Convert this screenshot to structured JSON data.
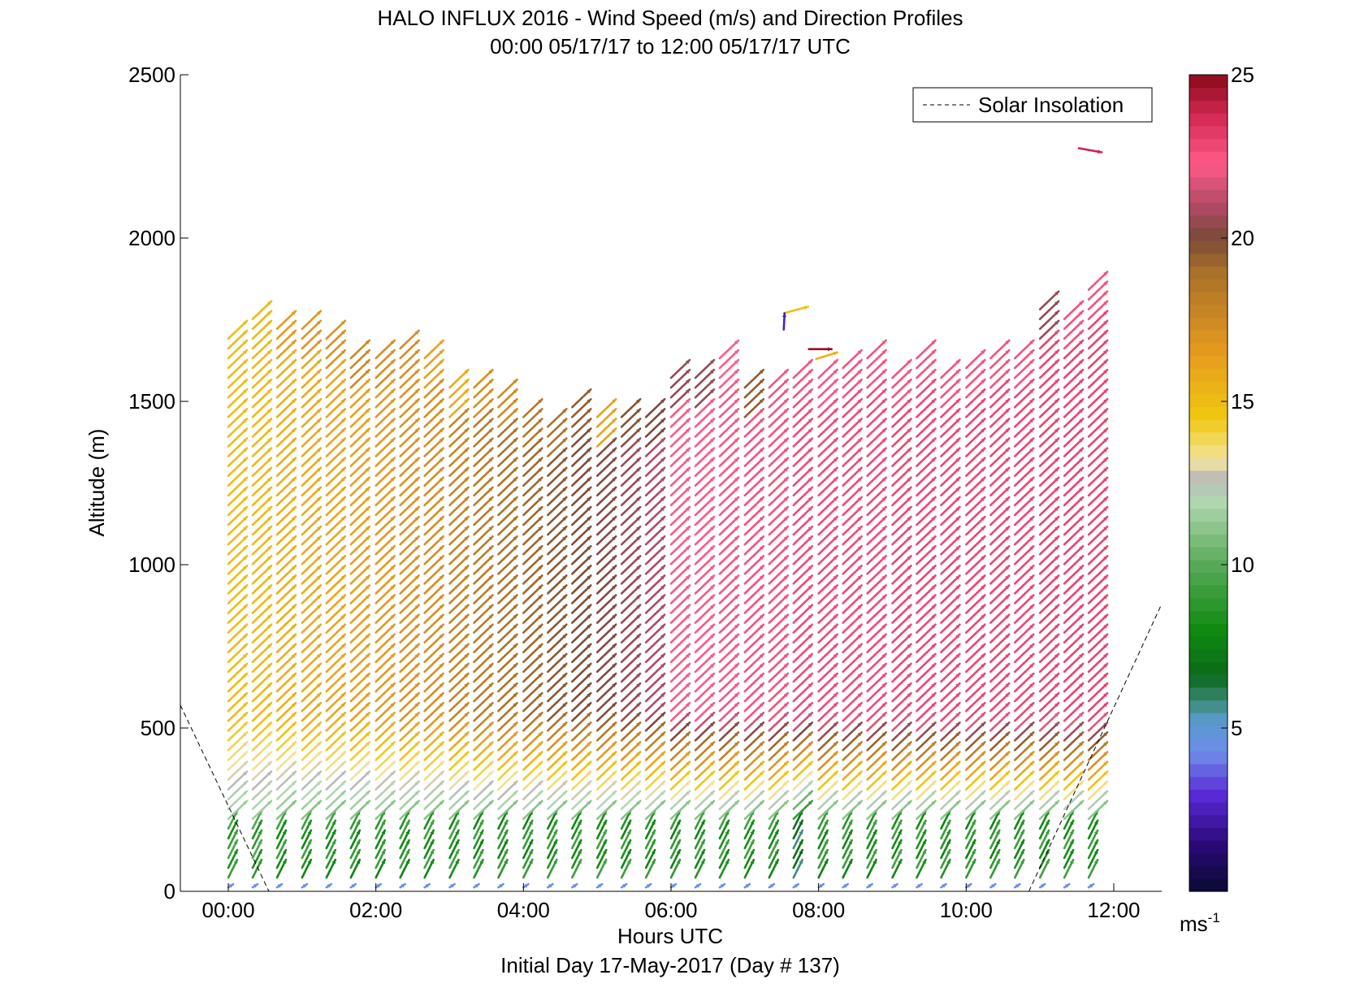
{
  "chart_data": {
    "type": "wind-profile",
    "title": "HALO INFLUX 2016 - Wind Speed (m/s) and Direction Profiles",
    "subtitle": "00:00 05/17/17 to 12:00 05/17/17  UTC",
    "xlabel": "Hours UTC",
    "footer": "Initial Day 17-May-2017 (Day # 137)",
    "ylabel": "Altitude (m)",
    "xlim": [
      -0.65,
      12.65
    ],
    "ylim": [
      0,
      2500
    ],
    "x_ticks": [
      {
        "value": 0,
        "label": "00:00"
      },
      {
        "value": 2,
        "label": "02:00"
      },
      {
        "value": 4,
        "label": "04:00"
      },
      {
        "value": 6,
        "label": "06:00"
      },
      {
        "value": 8,
        "label": "08:00"
      },
      {
        "value": 10,
        "label": "10:00"
      },
      {
        "value": 12,
        "label": "12:00"
      }
    ],
    "y_ticks": [
      {
        "value": 0,
        "label": "0"
      },
      {
        "value": 500,
        "label": "500"
      },
      {
        "value": 1000,
        "label": "1000"
      },
      {
        "value": 1500,
        "label": "1500"
      },
      {
        "value": 2000,
        "label": "2000"
      },
      {
        "value": 2500,
        "label": "2500"
      }
    ],
    "colorbar": {
      "range": [
        0,
        25
      ],
      "ticks": [
        {
          "value": 5,
          "label": "5"
        },
        {
          "value": 10,
          "label": "10"
        },
        {
          "value": 15,
          "label": "15"
        },
        {
          "value": 20,
          "label": "20"
        },
        {
          "value": 25,
          "label": "25"
        }
      ],
      "unit_base": "ms",
      "unit_exp": "-1",
      "stops": [
        {
          "v": 0,
          "c": "#0a0a33"
        },
        {
          "v": 1.5,
          "c": "#2c0a7a"
        },
        {
          "v": 3,
          "c": "#5a2ad8"
        },
        {
          "v": 4.2,
          "c": "#6e8ae8"
        },
        {
          "v": 5.2,
          "c": "#5a9ad0"
        },
        {
          "v": 5.8,
          "c": "#3e8a7a"
        },
        {
          "v": 6.6,
          "c": "#0a6a1a"
        },
        {
          "v": 8,
          "c": "#108a10"
        },
        {
          "v": 10,
          "c": "#58aa58"
        },
        {
          "v": 12,
          "c": "#b4d8b4"
        },
        {
          "v": 12.6,
          "c": "#b8b8b8"
        },
        {
          "v": 13.2,
          "c": "#f2e4a0"
        },
        {
          "v": 14.5,
          "c": "#f0c810"
        },
        {
          "v": 16.5,
          "c": "#e69a1e"
        },
        {
          "v": 19,
          "c": "#a8702a"
        },
        {
          "v": 20,
          "c": "#7a4a3a"
        },
        {
          "v": 21,
          "c": "#b04a66"
        },
        {
          "v": 22.3,
          "c": "#ff5a88"
        },
        {
          "v": 23.7,
          "c": "#d42a55"
        },
        {
          "v": 25,
          "c": "#8a0a1a"
        }
      ]
    },
    "legend": {
      "entries": [
        "Solar Insolation"
      ],
      "position": "top-right"
    },
    "solar_insolation": {
      "segments": [
        [
          [
            -0.65,
            570
          ],
          [
            0.55,
            0
          ]
        ],
        [
          [
            10.85,
            0
          ],
          [
            12.65,
            880
          ]
        ]
      ]
    },
    "profiles": [
      {
        "t": 0.0,
        "top": 1710,
        "speed_low": 9,
        "speed_mid": 15.0,
        "speed_high": 15.0
      },
      {
        "t": 0.33,
        "top": 1760,
        "speed_low": 9,
        "speed_mid": 15.1,
        "speed_high": 15.2
      },
      {
        "t": 0.66,
        "top": 1725,
        "speed_low": 8.5,
        "speed_mid": 15.6,
        "speed_high": 16.5
      },
      {
        "t": 1.0,
        "top": 1725,
        "speed_low": 8.5,
        "speed_mid": 15.8,
        "speed_high": 16.8
      },
      {
        "t": 1.33,
        "top": 1720,
        "speed_low": 8.5,
        "speed_mid": 16.0,
        "speed_high": 17.0
      },
      {
        "t": 1.66,
        "top": 1640,
        "speed_low": 8.5,
        "speed_mid": 16.3,
        "speed_high": 17.6
      },
      {
        "t": 2.0,
        "top": 1635,
        "speed_low": 8.5,
        "speed_mid": 16.6,
        "speed_high": 17.2
      },
      {
        "t": 2.33,
        "top": 1680,
        "speed_low": 8.5,
        "speed_mid": 17.0,
        "speed_high": 17.2
      },
      {
        "t": 2.66,
        "top": 1640,
        "speed_low": 8.5,
        "speed_mid": 17.2,
        "speed_high": 16.2
      },
      {
        "t": 3.0,
        "top": 1550,
        "speed_low": 8.5,
        "speed_mid": 17.8,
        "speed_high": 15.8
      },
      {
        "t": 3.33,
        "top": 1550,
        "speed_low": 8.5,
        "speed_mid": 18.3,
        "speed_high": 17.2
      },
      {
        "t": 3.66,
        "top": 1520,
        "speed_low": 8.5,
        "speed_mid": 18.8,
        "speed_high": 17.5
      },
      {
        "t": 4.0,
        "top": 1480,
        "speed_low": 8.5,
        "speed_mid": 19.2,
        "speed_high": 18.5
      },
      {
        "t": 4.33,
        "top": 1430,
        "speed_low": 8.5,
        "speed_mid": 19.6,
        "speed_high": 18.8
      },
      {
        "t": 4.66,
        "top": 1510,
        "speed_low": 8.5,
        "speed_mid": 19.9,
        "speed_high": 19.5
      },
      {
        "t": 5.0,
        "top": 1470,
        "speed_low": 8.5,
        "speed_mid": 20.2,
        "speed_high": 16.2
      },
      {
        "t": 5.33,
        "top": 1470,
        "speed_low": 8.5,
        "speed_mid": 20.6,
        "speed_high": 19.8
      },
      {
        "t": 5.66,
        "top": 1480,
        "speed_low": 8.5,
        "speed_mid": 21.0,
        "speed_high": 20.0
      },
      {
        "t": 6.0,
        "top": 1595,
        "speed_low": 8.5,
        "speed_mid": 22.2,
        "speed_high": 20.5
      },
      {
        "t": 6.33,
        "top": 1600,
        "speed_low": 8.5,
        "speed_mid": 22.4,
        "speed_high": 20.5
      },
      {
        "t": 6.66,
        "top": 1640,
        "speed_low": 8.5,
        "speed_mid": 22.5,
        "speed_high": 22.3
      },
      {
        "t": 7.0,
        "top": 1560,
        "speed_low": 8.5,
        "speed_mid": 22.6,
        "speed_high": 19.5
      },
      {
        "t": 7.33,
        "top": 1560,
        "speed_low": 8.5,
        "speed_mid": 22.6,
        "speed_high": 22.0
      },
      {
        "t": 7.66,
        "top": 1575,
        "speed_low": 6.5,
        "speed_mid": 22.8,
        "speed_high": 22.6
      },
      {
        "t": 8.0,
        "top": 1580,
        "speed_low": 8.5,
        "speed_mid": 22.8,
        "speed_high": 22.5
      },
      {
        "t": 8.33,
        "top": 1620,
        "speed_low": 8.5,
        "speed_mid": 22.8,
        "speed_high": 22.6
      },
      {
        "t": 8.66,
        "top": 1640,
        "speed_low": 8.5,
        "speed_mid": 22.8,
        "speed_high": 22.6
      },
      {
        "t": 9.0,
        "top": 1600,
        "speed_low": 8.5,
        "speed_mid": 22.9,
        "speed_high": 22.6
      },
      {
        "t": 9.33,
        "top": 1640,
        "speed_low": 8.5,
        "speed_mid": 22.9,
        "speed_high": 22.6
      },
      {
        "t": 9.66,
        "top": 1600,
        "speed_low": 8.5,
        "speed_mid": 22.9,
        "speed_high": 22.6
      },
      {
        "t": 10.0,
        "top": 1620,
        "speed_low": 8.5,
        "speed_mid": 22.9,
        "speed_high": 22.6
      },
      {
        "t": 10.33,
        "top": 1640,
        "speed_low": 8.5,
        "speed_mid": 22.9,
        "speed_high": 22.6
      },
      {
        "t": 10.66,
        "top": 1650,
        "speed_low": 8.5,
        "speed_mid": 22.9,
        "speed_high": 22.6
      },
      {
        "t": 11.0,
        "top": 1800,
        "speed_low": 8.5,
        "speed_mid": 23.0,
        "speed_high": 20.5
      },
      {
        "t": 11.33,
        "top": 1770,
        "speed_low": 8.5,
        "speed_mid": 23.0,
        "speed_high": 22.6
      },
      {
        "t": 11.66,
        "top": 1850,
        "speed_low": 8.5,
        "speed_mid": 23.0,
        "speed_high": 22.6
      }
    ],
    "isolated_vectors": [
      {
        "t": 7.66,
        "alt": 1770,
        "speed": 14.8,
        "dx": 30,
        "dy": -8
      },
      {
        "t": 7.66,
        "alt": 1720,
        "speed": 2.5,
        "dx": 1,
        "dy": -20
      },
      {
        "t": 8.0,
        "alt": 1660,
        "speed": 24.8,
        "dx": 28,
        "dy": 0
      },
      {
        "t": 8.1,
        "alt": 1630,
        "speed": 15.5,
        "dx": 26,
        "dy": -8
      },
      {
        "t": 11.66,
        "alt": 2275,
        "speed": 23.8,
        "dx": 28,
        "dy": 5
      }
    ]
  }
}
